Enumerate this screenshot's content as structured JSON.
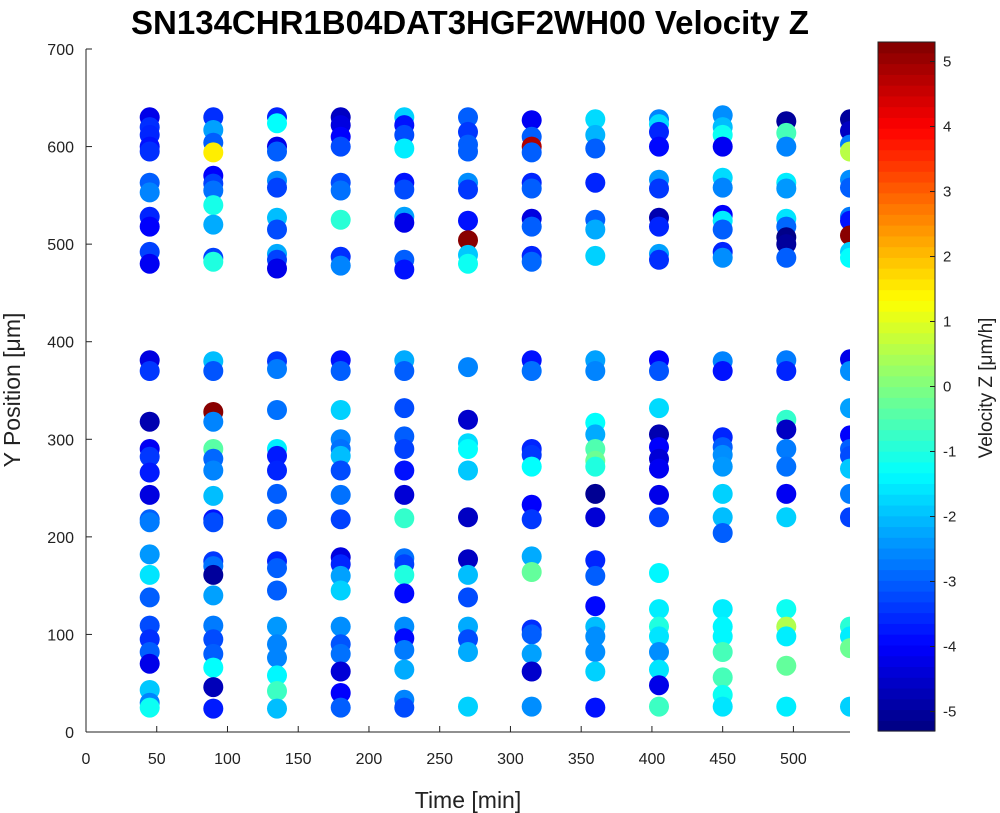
{
  "chart_data": {
    "type": "scatter",
    "title": "SN134CHR1B04DAT3HGF2WH00 Velocity Z",
    "xlabel": "Time [min]",
    "ylabel": "Y Position [μm]",
    "xlim": [
      0,
      540
    ],
    "ylim": [
      0,
      700
    ],
    "xticks": [
      0,
      50,
      100,
      150,
      200,
      250,
      300,
      350,
      400,
      450,
      500
    ],
    "yticks": [
      0,
      100,
      200,
      300,
      400,
      500,
      600,
      700
    ],
    "grid": false,
    "colorbar": {
      "label": "Velocity Z [μm/h]",
      "colormap": "jet",
      "range": [
        -5.3,
        5.3
      ],
      "ticks": [
        -5,
        -4,
        -3,
        -2,
        -1,
        0,
        1,
        2,
        3,
        4,
        5
      ]
    },
    "x": [
      45,
      90,
      135,
      180,
      225,
      270,
      315,
      360,
      405,
      450,
      495,
      540
    ],
    "points": [
      [
        45,
        630,
        -4.2
      ],
      [
        45,
        620,
        -3.5
      ],
      [
        45,
        612,
        -3.6
      ],
      [
        45,
        600,
        -3.8
      ],
      [
        45,
        595,
        -3.5
      ],
      [
        45,
        563,
        -3.0
      ],
      [
        45,
        553,
        -2.6
      ],
      [
        45,
        528,
        -3.6
      ],
      [
        45,
        518,
        -4.0
      ],
      [
        45,
        492,
        -3.3
      ],
      [
        45,
        480,
        -4.1
      ],
      [
        45,
        381,
        -4.3
      ],
      [
        45,
        370,
        -3.4
      ],
      [
        45,
        318,
        -4.8
      ],
      [
        45,
        290,
        -4.1
      ],
      [
        45,
        282,
        -3.4
      ],
      [
        45,
        266,
        -3.7
      ],
      [
        45,
        243,
        -4.3
      ],
      [
        45,
        218,
        -3.0
      ],
      [
        45,
        215,
        -2.7
      ],
      [
        45,
        182,
        -2.4
      ],
      [
        45,
        161,
        -1.6
      ],
      [
        45,
        138,
        -3.0
      ],
      [
        45,
        109,
        -3.2
      ],
      [
        45,
        95,
        -3.5
      ],
      [
        45,
        82,
        -3.0
      ],
      [
        45,
        70,
        -4.2
      ],
      [
        45,
        43,
        -1.9
      ],
      [
        45,
        30,
        -2.6
      ],
      [
        45,
        25,
        -1.2
      ],
      [
        90,
        630,
        -3.5
      ],
      [
        90,
        617,
        -2.3
      ],
      [
        90,
        604,
        -3.0
      ],
      [
        90,
        594,
        1.5
      ],
      [
        90,
        570,
        -4.0
      ],
      [
        90,
        562,
        -3.3
      ],
      [
        90,
        555,
        -2.8
      ],
      [
        90,
        540,
        -1.1
      ],
      [
        90,
        520,
        -2.2
      ],
      [
        90,
        486,
        -3.3
      ],
      [
        90,
        482,
        -1.0
      ],
      [
        90,
        380,
        -2.0
      ],
      [
        90,
        370,
        -3.1
      ],
      [
        90,
        328,
        5.2
      ],
      [
        90,
        318,
        -2.6
      ],
      [
        90,
        290,
        -0.4
      ],
      [
        90,
        280,
        -2.9
      ],
      [
        90,
        268,
        -2.6
      ],
      [
        90,
        242,
        -2.0
      ],
      [
        90,
        218,
        -3.8
      ],
      [
        90,
        215,
        -3.2
      ],
      [
        90,
        175,
        -3.4
      ],
      [
        90,
        170,
        -2.8
      ],
      [
        90,
        161,
        -5.0
      ],
      [
        90,
        140,
        -2.3
      ],
      [
        90,
        109,
        -2.7
      ],
      [
        90,
        95,
        -3.2
      ],
      [
        90,
        80,
        -3.0
      ],
      [
        90,
        66,
        -1.3
      ],
      [
        90,
        46,
        -4.7
      ],
      [
        90,
        24,
        -3.7
      ],
      [
        135,
        630,
        -3.6
      ],
      [
        135,
        624,
        -1.3
      ],
      [
        135,
        600,
        -4.2
      ],
      [
        135,
        595,
        -3.0
      ],
      [
        135,
        565,
        -2.5
      ],
      [
        135,
        558,
        -3.3
      ],
      [
        135,
        527,
        -2.0
      ],
      [
        135,
        515,
        -3.2
      ],
      [
        135,
        490,
        -2.2
      ],
      [
        135,
        484,
        -3.3
      ],
      [
        135,
        475,
        -4.2
      ],
      [
        135,
        380,
        -3.4
      ],
      [
        135,
        372,
        -2.7
      ],
      [
        135,
        330,
        -2.8
      ],
      [
        135,
        290,
        -1.5
      ],
      [
        135,
        283,
        -3.7
      ],
      [
        135,
        268,
        -3.6
      ],
      [
        135,
        244,
        -3.0
      ],
      [
        135,
        218,
        -3.0
      ],
      [
        135,
        175,
        -3.6
      ],
      [
        135,
        168,
        -3.0
      ],
      [
        135,
        145,
        -3.0
      ],
      [
        135,
        108,
        -2.4
      ],
      [
        135,
        90,
        -2.6
      ],
      [
        135,
        76,
        -2.6
      ],
      [
        135,
        58,
        -1.4
      ],
      [
        135,
        42,
        -0.7
      ],
      [
        135,
        24,
        -2.0
      ],
      [
        180,
        630,
        -4.6
      ],
      [
        180,
        622,
        -4.3
      ],
      [
        180,
        610,
        -4.0
      ],
      [
        180,
        600,
        -3.2
      ],
      [
        180,
        563,
        -3.2
      ],
      [
        180,
        555,
        -2.8
      ],
      [
        180,
        525,
        -0.9
      ],
      [
        180,
        487,
        -3.5
      ],
      [
        180,
        478,
        -2.6
      ],
      [
        180,
        381,
        -3.8
      ],
      [
        180,
        370,
        -3.0
      ],
      [
        180,
        330,
        -1.8
      ],
      [
        180,
        300,
        -2.6
      ],
      [
        180,
        290,
        -2.8
      ],
      [
        180,
        283,
        -2.0
      ],
      [
        180,
        268,
        -3.2
      ],
      [
        180,
        243,
        -2.8
      ],
      [
        180,
        218,
        -3.3
      ],
      [
        180,
        179,
        -4.3
      ],
      [
        180,
        172,
        -3.6
      ],
      [
        180,
        160,
        -2.3
      ],
      [
        180,
        145,
        -1.8
      ],
      [
        180,
        108,
        -2.5
      ],
      [
        180,
        90,
        -3.1
      ],
      [
        180,
        80,
        -2.8
      ],
      [
        180,
        62,
        -4.4
      ],
      [
        180,
        40,
        -4.0
      ],
      [
        180,
        25,
        -3.0
      ],
      [
        225,
        630,
        -1.8
      ],
      [
        225,
        622,
        -3.8
      ],
      [
        225,
        612,
        -3.2
      ],
      [
        225,
        598,
        -1.5
      ],
      [
        225,
        563,
        -3.8
      ],
      [
        225,
        556,
        -3.2
      ],
      [
        225,
        528,
        -2.3
      ],
      [
        225,
        522,
        -4.2
      ],
      [
        225,
        484,
        -3.0
      ],
      [
        225,
        474,
        -3.8
      ],
      [
        225,
        381,
        -2.2
      ],
      [
        225,
        370,
        -3.0
      ],
      [
        225,
        332,
        -3.2
      ],
      [
        225,
        303,
        -3.0
      ],
      [
        225,
        290,
        -3.3
      ],
      [
        225,
        268,
        -3.8
      ],
      [
        225,
        243,
        -4.4
      ],
      [
        225,
        219,
        -0.8
      ],
      [
        225,
        178,
        -2.8
      ],
      [
        225,
        172,
        -3.3
      ],
      [
        225,
        161,
        -1.0
      ],
      [
        225,
        142,
        -3.9
      ],
      [
        225,
        108,
        -2.5
      ],
      [
        225,
        96,
        -3.9
      ],
      [
        225,
        84,
        -2.7
      ],
      [
        225,
        64,
        -2.2
      ],
      [
        225,
        33,
        -2.6
      ],
      [
        225,
        25,
        -3.2
      ],
      [
        270,
        630,
        -3.0
      ],
      [
        270,
        615,
        -3.4
      ],
      [
        270,
        602,
        -3.0
      ],
      [
        270,
        595,
        -3.0
      ],
      [
        270,
        563,
        -2.5
      ],
      [
        270,
        556,
        -3.4
      ],
      [
        270,
        524,
        -3.8
      ],
      [
        270,
        504,
        5.2
      ],
      [
        270,
        489,
        -1.9
      ],
      [
        270,
        480,
        -1.2
      ],
      [
        270,
        374,
        -2.6
      ],
      [
        270,
        320,
        -4.5
      ],
      [
        270,
        296,
        -1.7
      ],
      [
        270,
        290,
        -1.3
      ],
      [
        270,
        268,
        -1.9
      ],
      [
        270,
        220,
        -4.6
      ],
      [
        270,
        177,
        -4.6
      ],
      [
        270,
        161,
        -2.0
      ],
      [
        270,
        138,
        -3.2
      ],
      [
        270,
        108,
        -2.2
      ],
      [
        270,
        95,
        -3.2
      ],
      [
        270,
        82,
        -2.2
      ],
      [
        270,
        26,
        -1.8
      ],
      [
        315,
        627,
        -4.1
      ],
      [
        315,
        610,
        -3.0
      ],
      [
        315,
        600,
        4.8
      ],
      [
        315,
        594,
        -3.0
      ],
      [
        315,
        563,
        -3.6
      ],
      [
        315,
        557,
        -3.0
      ],
      [
        315,
        526,
        -4.3
      ],
      [
        315,
        518,
        -3.0
      ],
      [
        315,
        488,
        -3.6
      ],
      [
        315,
        482,
        -2.9
      ],
      [
        315,
        381,
        -3.8
      ],
      [
        315,
        370,
        -2.8
      ],
      [
        315,
        290,
        -3.6
      ],
      [
        315,
        284,
        -3.4
      ],
      [
        315,
        272,
        -1.3
      ],
      [
        315,
        233,
        -4.0
      ],
      [
        315,
        218,
        -3.4
      ],
      [
        315,
        180,
        -2.2
      ],
      [
        315,
        164,
        -0.3
      ],
      [
        315,
        105,
        -3.5
      ],
      [
        315,
        100,
        -3.0
      ],
      [
        315,
        80,
        -2.3
      ],
      [
        315,
        62,
        -4.5
      ],
      [
        315,
        26,
        -2.5
      ],
      [
        360,
        628,
        -1.7
      ],
      [
        360,
        612,
        -2.1
      ],
      [
        360,
        598,
        -3.0
      ],
      [
        360,
        563,
        -3.6
      ],
      [
        360,
        525,
        -3.0
      ],
      [
        360,
        515,
        -2.2
      ],
      [
        360,
        488,
        -1.8
      ],
      [
        360,
        381,
        -2.3
      ],
      [
        360,
        370,
        -2.6
      ],
      [
        360,
        317,
        -1.3
      ],
      [
        360,
        305,
        -2.2
      ],
      [
        360,
        290,
        -0.5
      ],
      [
        360,
        278,
        -0.2
      ],
      [
        360,
        272,
        -1.0
      ],
      [
        360,
        244,
        -5.1
      ],
      [
        360,
        220,
        -4.4
      ],
      [
        360,
        176,
        -3.6
      ],
      [
        360,
        160,
        -3.0
      ],
      [
        360,
        129,
        -3.9
      ],
      [
        360,
        108,
        -2.0
      ],
      [
        360,
        98,
        -2.5
      ],
      [
        360,
        82,
        -2.5
      ],
      [
        360,
        62,
        -1.8
      ],
      [
        360,
        25,
        -3.8
      ],
      [
        405,
        628,
        -2.6
      ],
      [
        405,
        623,
        -1.7
      ],
      [
        405,
        615,
        -3.6
      ],
      [
        405,
        600,
        -3.9
      ],
      [
        405,
        566,
        -2.4
      ],
      [
        405,
        557,
        -3.4
      ],
      [
        405,
        527,
        -4.8
      ],
      [
        405,
        518,
        -3.6
      ],
      [
        405,
        490,
        -2.3
      ],
      [
        405,
        484,
        -3.5
      ],
      [
        405,
        381,
        -4.0
      ],
      [
        405,
        370,
        -3.1
      ],
      [
        405,
        332,
        -1.7
      ],
      [
        405,
        305,
        -4.8
      ],
      [
        405,
        292,
        -4.0
      ],
      [
        405,
        280,
        -4.4
      ],
      [
        405,
        270,
        -4.1
      ],
      [
        405,
        243,
        -4.2
      ],
      [
        405,
        220,
        -3.3
      ],
      [
        405,
        163,
        -1.4
      ],
      [
        405,
        126,
        -1.5
      ],
      [
        405,
        108,
        -1.0
      ],
      [
        405,
        98,
        -1.6
      ],
      [
        405,
        82,
        -2.5
      ],
      [
        405,
        64,
        -1.6
      ],
      [
        405,
        48,
        -4.2
      ],
      [
        405,
        26,
        -0.7
      ],
      [
        450,
        632,
        -2.5
      ],
      [
        450,
        620,
        -2.0
      ],
      [
        450,
        612,
        -1.2
      ],
      [
        450,
        600,
        -4.1
      ],
      [
        450,
        568,
        -1.7
      ],
      [
        450,
        558,
        -2.6
      ],
      [
        450,
        530,
        -4.0
      ],
      [
        450,
        524,
        -1.5
      ],
      [
        450,
        515,
        -3.0
      ],
      [
        450,
        492,
        -3.6
      ],
      [
        450,
        486,
        -2.5
      ],
      [
        450,
        380,
        -2.6
      ],
      [
        450,
        370,
        -3.8
      ],
      [
        450,
        302,
        -3.6
      ],
      [
        450,
        292,
        -3.0
      ],
      [
        450,
        284,
        -2.5
      ],
      [
        450,
        272,
        -2.4
      ],
      [
        450,
        244,
        -1.8
      ],
      [
        450,
        220,
        -2.0
      ],
      [
        450,
        204,
        -3.0
      ],
      [
        450,
        126,
        -1.5
      ],
      [
        450,
        108,
        -1.4
      ],
      [
        450,
        98,
        -1.4
      ],
      [
        450,
        82,
        -0.6
      ],
      [
        450,
        56,
        -0.6
      ],
      [
        450,
        38,
        -1.2
      ],
      [
        450,
        26,
        -1.6
      ],
      [
        495,
        626,
        -5.0
      ],
      [
        495,
        614,
        -0.6
      ],
      [
        495,
        600,
        -2.6
      ],
      [
        495,
        563,
        -1.5
      ],
      [
        495,
        557,
        -2.4
      ],
      [
        495,
        526,
        -1.6
      ],
      [
        495,
        518,
        -2.9
      ],
      [
        495,
        507,
        -5.2
      ],
      [
        495,
        500,
        -5.0
      ],
      [
        495,
        486,
        -3.0
      ],
      [
        495,
        381,
        -2.7
      ],
      [
        495,
        370,
        -3.6
      ],
      [
        495,
        320,
        -0.8
      ],
      [
        495,
        310,
        -4.6
      ],
      [
        495,
        290,
        -2.7
      ],
      [
        495,
        272,
        -2.8
      ],
      [
        495,
        244,
        -4.1
      ],
      [
        495,
        220,
        -1.8
      ],
      [
        495,
        126,
        -1.2
      ],
      [
        495,
        108,
        0.5
      ],
      [
        495,
        98,
        -1.5
      ],
      [
        495,
        68,
        -0.3
      ],
      [
        495,
        26,
        -1.5
      ],
      [
        540,
        628,
        -5.0
      ],
      [
        540,
        616,
        -4.6
      ],
      [
        540,
        602,
        -2.7
      ],
      [
        540,
        595,
        0.6
      ],
      [
        540,
        566,
        -2.5
      ],
      [
        540,
        558,
        -3.0
      ],
      [
        540,
        528,
        -2.7
      ],
      [
        540,
        524,
        -3.8
      ],
      [
        540,
        509,
        5.2
      ],
      [
        540,
        492,
        -1.8
      ],
      [
        540,
        486,
        -1.3
      ],
      [
        540,
        382,
        -4.2
      ],
      [
        540,
        370,
        -2.5
      ],
      [
        540,
        332,
        -2.3
      ],
      [
        540,
        304,
        -4.0
      ],
      [
        540,
        290,
        -3.0
      ],
      [
        540,
        283,
        -3.2
      ],
      [
        540,
        270,
        -1.9
      ],
      [
        540,
        244,
        -2.7
      ],
      [
        540,
        220,
        -3.3
      ],
      [
        540,
        108,
        -0.9
      ],
      [
        540,
        98,
        -1.5
      ],
      [
        540,
        86,
        -0.2
      ],
      [
        540,
        26,
        -1.8
      ]
    ]
  }
}
